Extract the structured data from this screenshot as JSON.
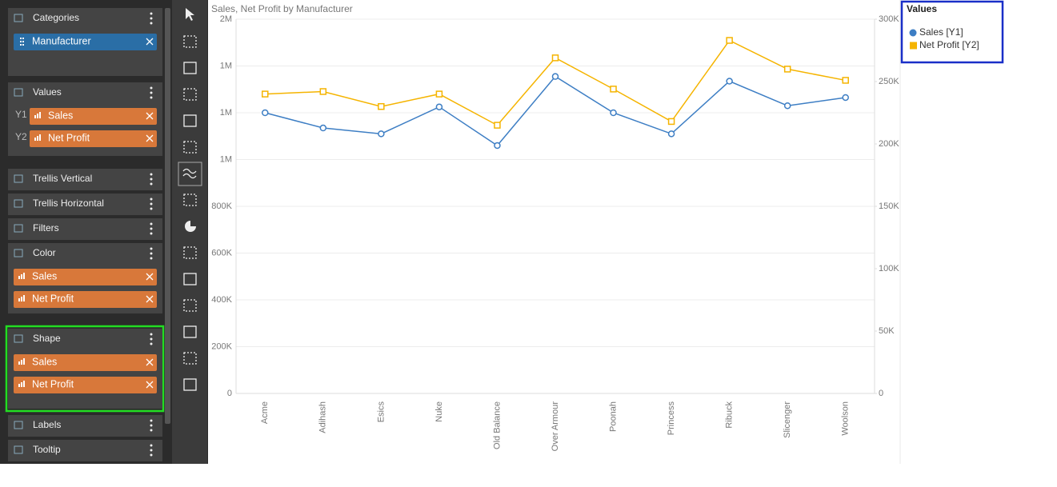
{
  "panel": {
    "sections": [
      {
        "title": "Categories",
        "items": [
          {
            "label": "Manufacturer"
          }
        ]
      },
      {
        "title": "Values",
        "items": [
          {
            "axis": "Y1",
            "label": "Sales"
          },
          {
            "axis": "Y2",
            "label": "Net Profit"
          }
        ]
      },
      {
        "title": "Trellis Vertical",
        "items": []
      },
      {
        "title": "Trellis Horizontal",
        "items": []
      },
      {
        "title": "Filters",
        "items": []
      },
      {
        "title": "Color",
        "items": [
          {
            "label": "Sales"
          },
          {
            "label": "Net Profit"
          }
        ]
      },
      {
        "title": "Shape",
        "items": [
          {
            "label": "Sales"
          },
          {
            "label": "Net Profit"
          }
        ]
      },
      {
        "title": "Labels",
        "items": []
      },
      {
        "title": "Tooltip",
        "items": []
      }
    ]
  },
  "chart_data": {
    "type": "line",
    "title": "Sales, Net Profit by Manufacturer",
    "categories": [
      "Acme",
      "Adihash",
      "Esics",
      "Nuke",
      "Old Balance",
      "Over Armour",
      "Poonah",
      "Princess",
      "Ribuck",
      "Slicenger",
      "Woolson"
    ],
    "series": [
      {
        "name": "Sales [Y1]",
        "color": "#3d7ec4",
        "marker": "circle",
        "values": [
          1200000,
          1135000,
          1110000,
          1225000,
          1060000,
          1355000,
          1200000,
          1110000,
          1335000,
          1230000,
          1265000
        ]
      },
      {
        "name": "Net Profit [Y2]",
        "color": "#f5b400",
        "marker": "square",
        "axis": "y2",
        "values": [
          240000,
          242000,
          230000,
          240000,
          215000,
          269000,
          244000,
          218000,
          283000,
          260000,
          251000
        ]
      }
    ],
    "ylim": [
      0,
      1600000
    ],
    "yticks": [
      0,
      {
        "value": 200000,
        "label": "200K"
      },
      {
        "value": 400000,
        "label": "400K"
      },
      {
        "value": 600000,
        "label": "600K"
      },
      {
        "value": 800000,
        "label": "800K"
      },
      {
        "value": 1000000,
        "label": "1M"
      },
      {
        "value": 1200000,
        "label": "1M"
      },
      {
        "value": 1400000,
        "label": "1M"
      },
      {
        "value": 1600000,
        "label": "2M"
      }
    ],
    "y2lim": [
      0,
      300000
    ],
    "y2ticks": [
      0,
      {
        "value": 50000,
        "label": "50K"
      },
      {
        "value": 100000,
        "label": "100K"
      },
      {
        "value": 150000,
        "label": "150K"
      },
      {
        "value": 200000,
        "label": "200K"
      },
      {
        "value": 250000,
        "label": "250K"
      },
      {
        "value": 300000,
        "label": "300K"
      }
    ],
    "grid": true,
    "legend_title": "Values",
    "legend": "right"
  }
}
